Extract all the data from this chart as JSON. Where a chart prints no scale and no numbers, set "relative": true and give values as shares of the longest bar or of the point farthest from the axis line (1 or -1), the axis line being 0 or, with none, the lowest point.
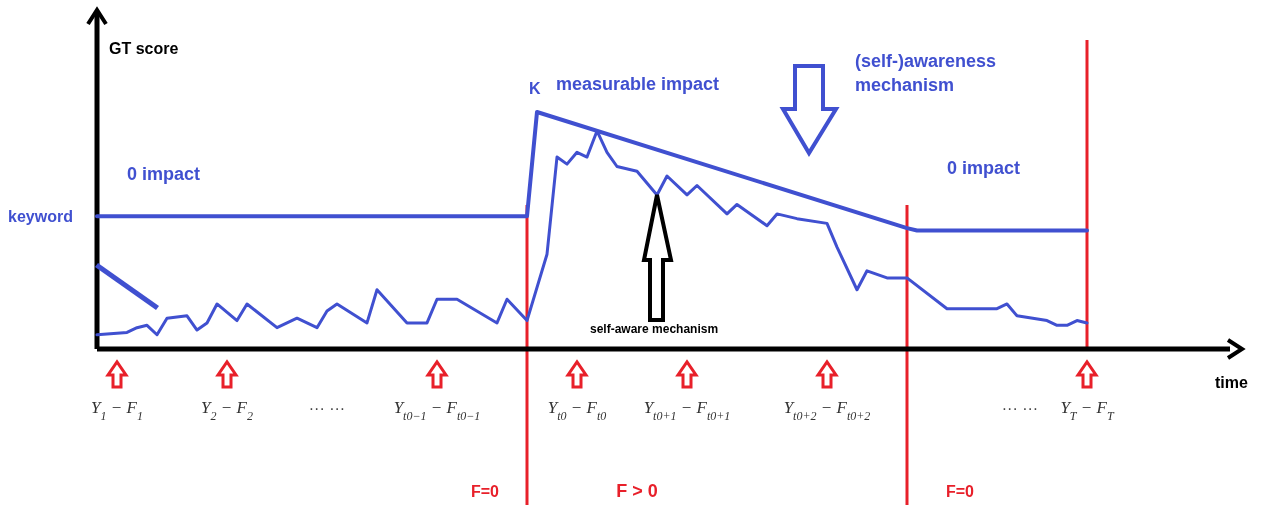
{
  "chart_data": {
    "type": "line",
    "relative": true,
    "xlabel": "time",
    "ylabel": "GT score",
    "categories": [
      null,
      null,
      "Y$_{1}$ − F$_{1}$",
      null,
      null,
      null,
      null,
      null,
      null,
      null,
      null,
      null,
      null,
      "Y$_{2}$ − F$_{2}$",
      null,
      null,
      null,
      null,
      null,
      null,
      null,
      null,
      null,
      null,
      null,
      null,
      null,
      null,
      null,
      null,
      null,
      null,
      null,
      null,
      "Y$_{t0−1}$ − F$_{t0−1}$",
      null,
      null,
      null,
      null,
      null,
      null,
      null,
      null,
      null,
      null,
      null,
      null,
      null,
      "Y$_{t0}$ − F$_{t0}$",
      null,
      null,
      null,
      null,
      null,
      null,
      null,
      null,
      null,
      null,
      "Y$_{t0+1}$ − F$_{t0+1}$",
      null,
      null,
      null,
      null,
      null,
      null,
      null,
      null,
      null,
      null,
      null,
      null,
      null,
      "Y$_{t0+2}$ − F$_{t0+2}$",
      null,
      null,
      null,
      null,
      null,
      null,
      null,
      null,
      null,
      null,
      null,
      null,
      null,
      null,
      null,
      null,
      null,
      null,
      null,
      null,
      null,
      null,
      null,
      null,
      null,
      "Y$_{T}$ − F$_{T}$",
      null,
      null,
      null,
      null,
      null,
      null,
      null,
      null,
      null,
      null,
      null,
      null
    ],
    "series": [
      {
        "color": "#4050d0",
        "values": [
          0.06,
          null,
          null,
          0.07,
          0.09,
          0.1,
          0.06,
          0.13,
          null,
          0.14,
          0.08,
          0.11,
          0.19,
          null,
          0.12,
          0.19,
          null,
          null,
          0.09,
          null,
          0.13,
          null,
          0.09,
          0.16,
          0.19,
          null,
          null,
          0.11,
          0.25,
          null,
          null,
          0.11,
          null,
          0.11,
          0.21,
          null,
          0.21,
          null,
          null,
          null,
          0.11,
          0.21,
          null,
          0.12,
          null,
          0.4,
          0.81,
          0.78,
          0.83,
          0.81,
          0.92,
          0.83,
          0.77,
          null,
          0.75,
          null,
          0.65,
          0.73,
          null,
          0.65,
          0.69,
          null,
          null,
          0.57,
          0.61,
          null,
          null,
          0.52,
          0.57,
          null,
          0.55,
          null,
          null,
          0.53,
          0.43,
          null,
          0.25,
          0.33,
          null,
          0.3,
          null,
          0.3,
          null,
          null,
          null,
          0.17,
          null,
          null,
          null,
          null,
          0.17,
          0.19,
          0.14,
          null,
          null,
          0.12,
          0.1,
          0.1,
          0.12,
          0.11,
          null,
          null,
          null,
          null,
          null,
          null,
          null,
          null,
          null,
          null,
          null,
          null
        ]
      },
      {
        "color": "#4050d0",
        "values": [
          0.56,
          null,
          null,
          null,
          null,
          null,
          null,
          null,
          null,
          null,
          null,
          null,
          null,
          null,
          null,
          null,
          null,
          null,
          null,
          null,
          null,
          null,
          null,
          null,
          null,
          null,
          null,
          null,
          null,
          null,
          null,
          null,
          null,
          null,
          null,
          null,
          null,
          null,
          null,
          null,
          null,
          null,
          null,
          0.56,
          1,
          null,
          null,
          null,
          null,
          null,
          null,
          null,
          null,
          null,
          null,
          null,
          null,
          null,
          null,
          null,
          null,
          null,
          null,
          null,
          null,
          null,
          null,
          null,
          null,
          null,
          null,
          null,
          null,
          null,
          null,
          null,
          null,
          null,
          null,
          null,
          null,
          0.51,
          0.5,
          null,
          null,
          null,
          null,
          null,
          null,
          null,
          null,
          null,
          null,
          null,
          null,
          null,
          null,
          null,
          null,
          0.5,
          null,
          null,
          null,
          null,
          null,
          null,
          null,
          null,
          null,
          null,
          null,
          null
        ]
      }
    ],
    "annotations": [
      "keyword",
      "0 impact",
      "K",
      "measurable impact",
      "(self-)awareness mechanism",
      "0 impact",
      "self-aware mechanism",
      "···   ···",
      "···   ···",
      "F=0",
      "F > 0",
      "F=0"
    ]
  }
}
